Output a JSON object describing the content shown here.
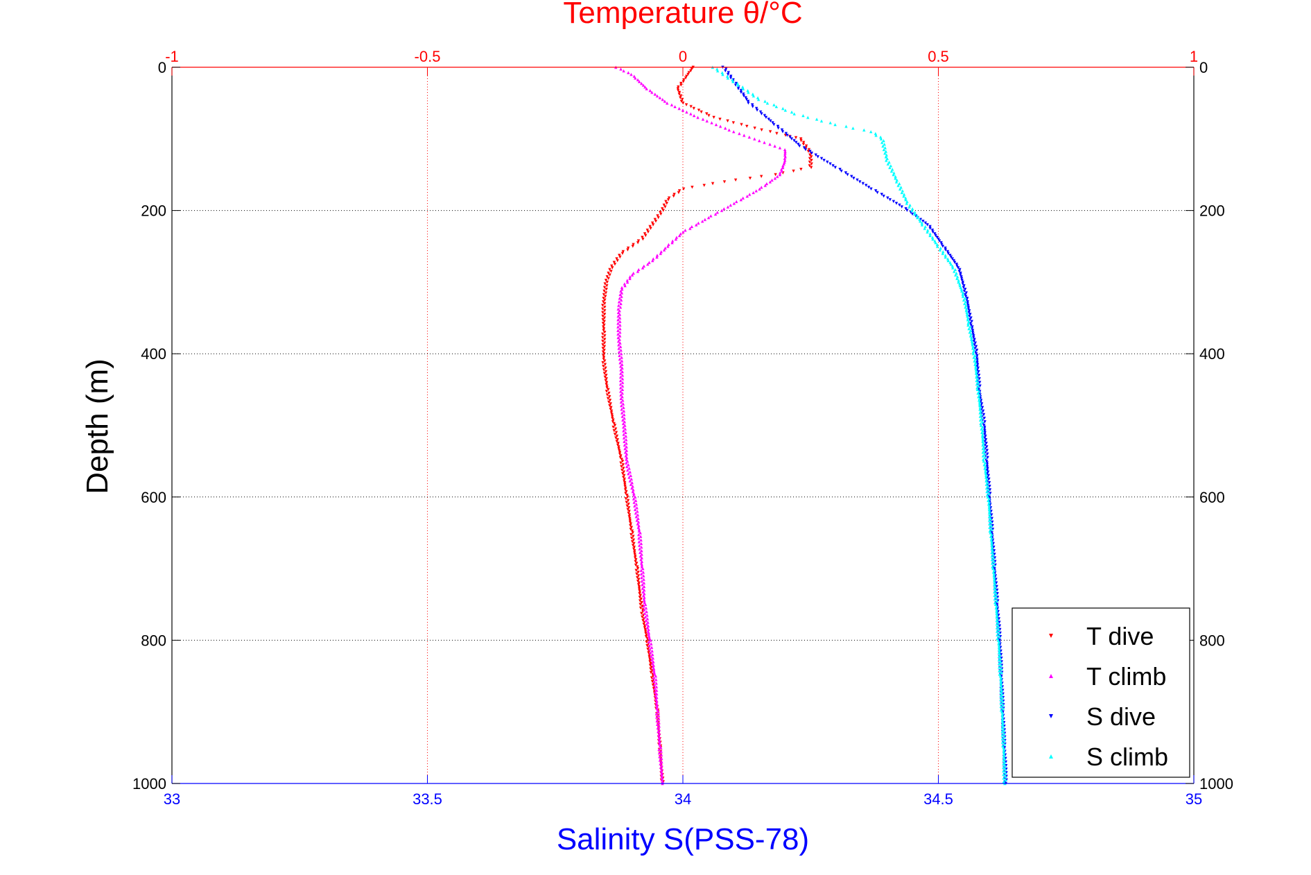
{
  "chart_data": {
    "type": "scatter",
    "title": "Temperature θ/°C",
    "xlabel": "Salinity S(PSS-78)",
    "ylabel": "Depth (m)",
    "x_bottom": {
      "label": "Salinity S(PSS-78)",
      "range": [
        33,
        35
      ],
      "ticks": [
        "33",
        "33.5",
        "34",
        "34.5",
        "35"
      ],
      "color": "#0000ff"
    },
    "x_top": {
      "label": "Temperature θ/°C",
      "range": [
        -1,
        1
      ],
      "ticks": [
        "-1",
        "-0.5",
        "0",
        "0.5",
        "1"
      ],
      "color": "#ff0000"
    },
    "y": {
      "label": "Depth (m)",
      "range": [
        0,
        1000
      ],
      "reversed": true,
      "ticks": [
        "0",
        "200",
        "400",
        "600",
        "800",
        "1000"
      ]
    },
    "grid": true,
    "legend": {
      "position": "bottom-right"
    },
    "series": [
      {
        "name": "T dive",
        "axis": "temperature",
        "color": "#ff0000",
        "marker": "triangle-down",
        "points": [
          [
            0.02,
            0
          ],
          [
            0.01,
            10
          ],
          [
            -0.01,
            30
          ],
          [
            0.0,
            50
          ],
          [
            0.06,
            70
          ],
          [
            0.14,
            85
          ],
          [
            0.2,
            95
          ],
          [
            0.23,
            100
          ],
          [
            0.25,
            120
          ],
          [
            0.25,
            140
          ],
          [
            0.18,
            150
          ],
          [
            0.08,
            160
          ],
          [
            0.0,
            170
          ],
          [
            -0.03,
            185
          ],
          [
            -0.04,
            200
          ],
          [
            -0.06,
            220
          ],
          [
            -0.08,
            240
          ],
          [
            -0.12,
            260
          ],
          [
            -0.14,
            280
          ],
          [
            -0.15,
            300
          ],
          [
            -0.155,
            330
          ],
          [
            -0.155,
            370
          ],
          [
            -0.155,
            410
          ],
          [
            -0.148,
            450
          ],
          [
            -0.135,
            500
          ],
          [
            -0.12,
            550
          ],
          [
            -0.11,
            600
          ],
          [
            -0.1,
            650
          ],
          [
            -0.09,
            700
          ],
          [
            -0.08,
            760
          ],
          [
            -0.07,
            800
          ],
          [
            -0.06,
            850
          ],
          [
            -0.05,
            900
          ],
          [
            -0.045,
            950
          ],
          [
            -0.04,
            1000
          ]
        ]
      },
      {
        "name": "T climb",
        "axis": "temperature",
        "color": "#ff00ff",
        "marker": "triangle-up",
        "points": [
          [
            -0.13,
            0
          ],
          [
            -0.1,
            10
          ],
          [
            -0.07,
            30
          ],
          [
            -0.03,
            50
          ],
          [
            0.03,
            70
          ],
          [
            0.1,
            90
          ],
          [
            0.16,
            105
          ],
          [
            0.2,
            115
          ],
          [
            0.2,
            130
          ],
          [
            0.19,
            150
          ],
          [
            0.15,
            170
          ],
          [
            0.1,
            190
          ],
          [
            0.05,
            210
          ],
          [
            0.0,
            230
          ],
          [
            -0.03,
            250
          ],
          [
            -0.06,
            270
          ],
          [
            -0.1,
            290
          ],
          [
            -0.12,
            310
          ],
          [
            -0.125,
            340
          ],
          [
            -0.125,
            380
          ],
          [
            -0.12,
            420
          ],
          [
            -0.12,
            460
          ],
          [
            -0.115,
            500
          ],
          [
            -0.11,
            550
          ],
          [
            -0.095,
            600
          ],
          [
            -0.085,
            650
          ],
          [
            -0.08,
            700
          ],
          [
            -0.075,
            750
          ],
          [
            -0.065,
            800
          ],
          [
            -0.055,
            850
          ],
          [
            -0.05,
            900
          ],
          [
            -0.045,
            950
          ],
          [
            -0.04,
            1000
          ]
        ]
      },
      {
        "name": "S dive",
        "axis": "salinity",
        "color": "#0000ff",
        "marker": "triangle-down",
        "points": [
          [
            34.08,
            0
          ],
          [
            34.1,
            20
          ],
          [
            34.13,
            50
          ],
          [
            34.18,
            80
          ],
          [
            34.23,
            110
          ],
          [
            34.3,
            140
          ],
          [
            34.37,
            170
          ],
          [
            34.43,
            195
          ],
          [
            34.48,
            220
          ],
          [
            34.51,
            250
          ],
          [
            34.54,
            280
          ],
          [
            34.555,
            320
          ],
          [
            34.565,
            360
          ],
          [
            34.575,
            400
          ],
          [
            34.58,
            450
          ],
          [
            34.59,
            500
          ],
          [
            34.595,
            550
          ],
          [
            34.6,
            600
          ],
          [
            34.605,
            650
          ],
          [
            34.61,
            700
          ],
          [
            34.615,
            750
          ],
          [
            34.62,
            800
          ],
          [
            34.623,
            850
          ],
          [
            34.626,
            900
          ],
          [
            34.629,
            950
          ],
          [
            34.632,
            1000
          ]
        ]
      },
      {
        "name": "S climb",
        "axis": "salinity",
        "color": "#00ffff",
        "marker": "triangle-up",
        "points": [
          [
            34.06,
            0
          ],
          [
            34.1,
            20
          ],
          [
            34.15,
            45
          ],
          [
            34.22,
            65
          ],
          [
            34.3,
            80
          ],
          [
            34.37,
            90
          ],
          [
            34.39,
            100
          ],
          [
            34.4,
            130
          ],
          [
            34.42,
            160
          ],
          [
            34.44,
            190
          ],
          [
            34.47,
            220
          ],
          [
            34.5,
            250
          ],
          [
            34.53,
            280
          ],
          [
            34.55,
            320
          ],
          [
            34.56,
            360
          ],
          [
            34.57,
            400
          ],
          [
            34.578,
            450
          ],
          [
            34.585,
            500
          ],
          [
            34.59,
            550
          ],
          [
            34.598,
            600
          ],
          [
            34.603,
            650
          ],
          [
            34.608,
            700
          ],
          [
            34.613,
            750
          ],
          [
            34.618,
            800
          ],
          [
            34.622,
            850
          ],
          [
            34.625,
            900
          ],
          [
            34.628,
            950
          ],
          [
            34.63,
            1000
          ]
        ]
      }
    ]
  }
}
